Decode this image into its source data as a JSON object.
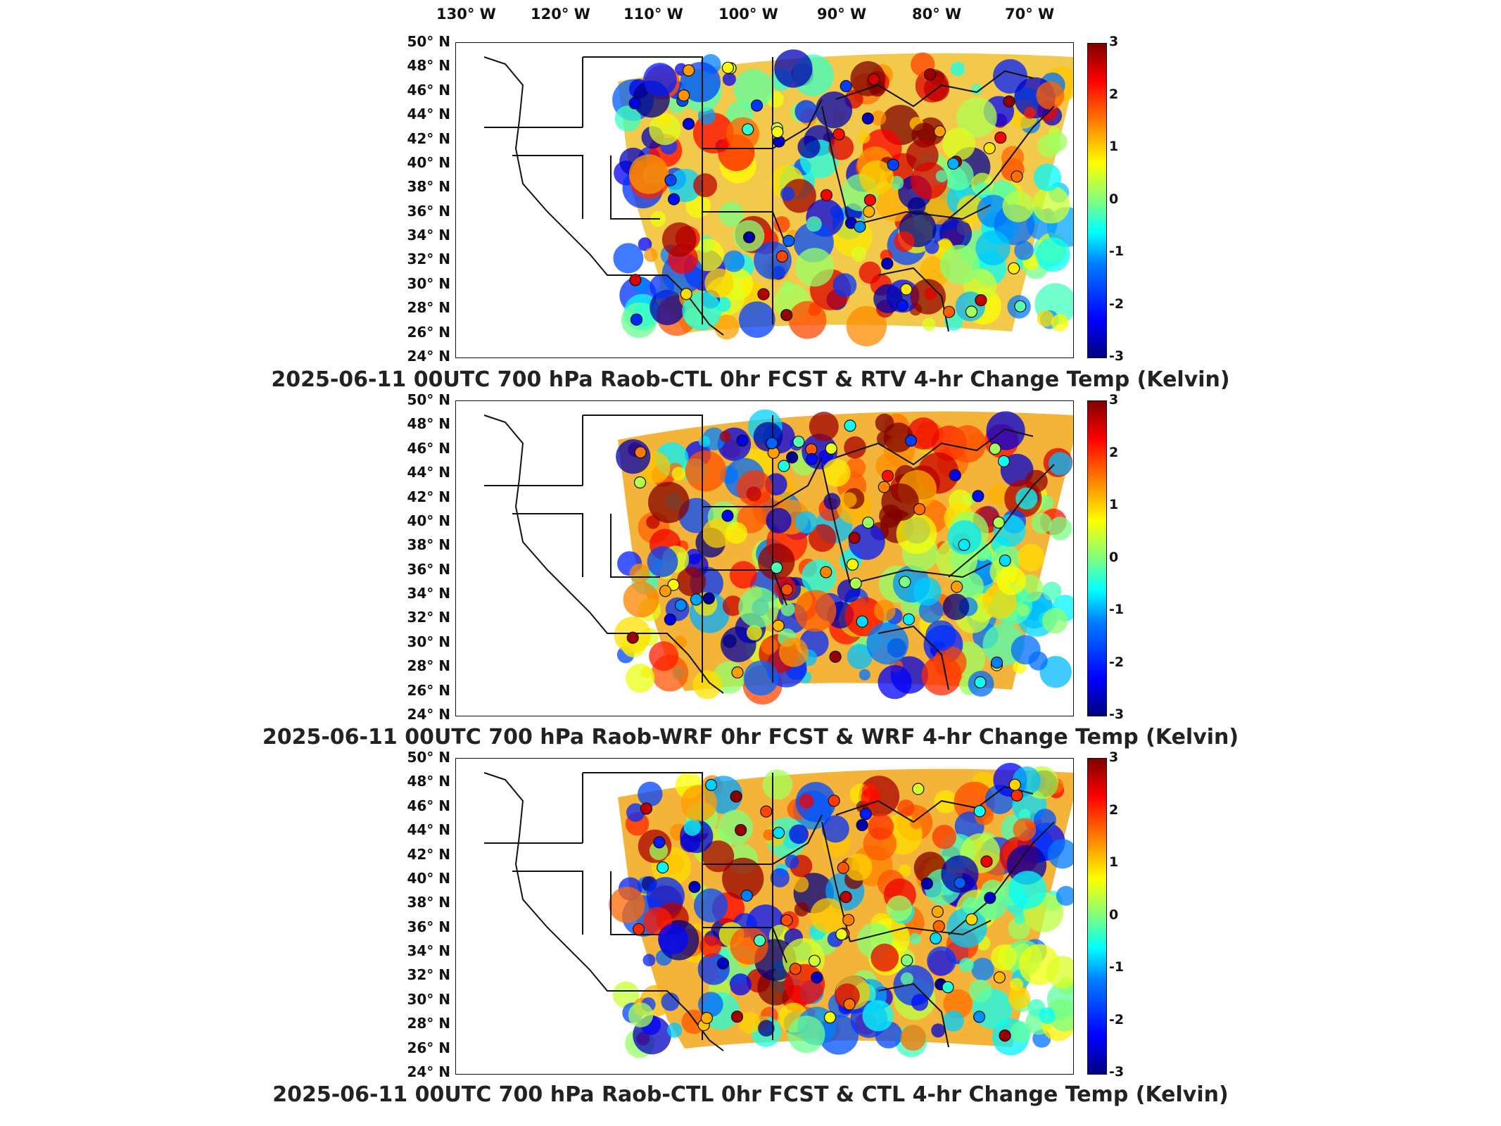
{
  "longitude_labels": [
    "130° W",
    "120° W",
    "110° W",
    "100° W",
    "90° W",
    "80° W",
    "70° W"
  ],
  "latitude_labels": [
    "50° N",
    "48° N",
    "46° N",
    "44° N",
    "42° N",
    "40° N",
    "38° N",
    "36° N",
    "34° N",
    "32° N",
    "30° N",
    "28° N",
    "26° N",
    "24° N"
  ],
  "colorbar": {
    "ticks": [
      "3",
      "2",
      "1",
      "0",
      "-1",
      "-2",
      "-3"
    ],
    "range": [
      -3,
      3
    ],
    "colormap": "jet"
  },
  "colors": {
    "frame": "#111111",
    "warm": "#e8401c",
    "cool": "#1a6fe0",
    "neutral": "#7fdc8a"
  },
  "panels": [
    {
      "title": "2025-06-11 00UTC 700 hPa Raob-CTL 0hr FCST & RTV 4-hr Change Temp (Kelvin)"
    },
    {
      "title": "2025-06-11 00UTC 700 hPa Raob-WRF 0hr FCST & WRF 4-hr Change Temp (Kelvin)"
    },
    {
      "title": "2025-06-11 00UTC 700 hPa Raob-CTL 0hr FCST & CTL 4-hr Change Temp (Kelvin)"
    }
  ]
}
